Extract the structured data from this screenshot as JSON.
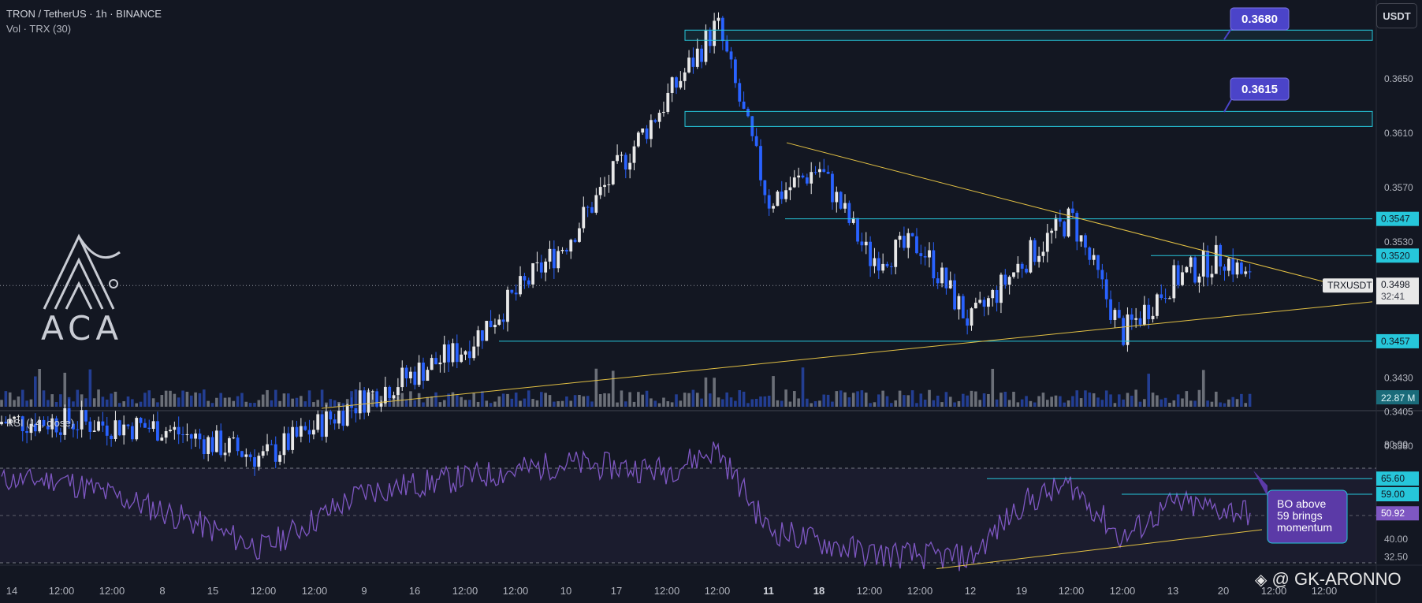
{
  "header": {
    "symbol_line": "TRON / TetherUS · 1h · BINANCE",
    "volume_line": "Vol · TRX (30)",
    "currency_button": "USDT"
  },
  "rsi_pane": {
    "label": "RSI (14, close)"
  },
  "logo": {
    "text": "ACA"
  },
  "watermark": {
    "text": "@ GK-ARONNO",
    "icon": "binance-diamond-icon"
  },
  "colors": {
    "background": "#131722",
    "bull_candle": "#e8e8e8",
    "bear_candle": "#2962ff",
    "level_line": "#26c6da",
    "trendline": "#e2c044",
    "rsi_line": "#7e57c2",
    "target_label_bg": "#4b44c9",
    "note_bg": "#5b3aa7"
  },
  "chart_data": [
    {
      "type": "candlestick",
      "pane": "price",
      "title": "TRON / TetherUS · 1h · BINANCE",
      "ylim": [
        0.336,
        0.37
      ],
      "y_ticks": [
        "0.3650",
        "0.3610",
        "0.3570",
        "0.3530",
        "0.3430",
        "0.3405",
        "0.3380"
      ],
      "x_tick_labels": [
        "12:00",
        "8",
        "12:00",
        "9",
        "12:00",
        "10",
        "12:00",
        "11",
        "12:00",
        "12",
        "12:00",
        "13",
        "12:00",
        "14",
        "12:00",
        "15",
        "12:00",
        "16",
        "12:00",
        "17",
        "12:00",
        "18",
        "12:00",
        "19",
        "12:00",
        "20",
        "12:00"
      ],
      "key_closes": [
        {
          "x": "8",
          "close": 0.3398
        },
        {
          "x": "9",
          "close": 0.3393
        },
        {
          "x": "10",
          "close": 0.3371
        },
        {
          "x": "11",
          "close": 0.3415
        },
        {
          "x": "12",
          "close": 0.3452
        },
        {
          "x": "13",
          "close": 0.353
        },
        {
          "x": "14",
          "close": 0.3635
        },
        {
          "x": "14 12:00",
          "close": 0.369
        },
        {
          "x": "15",
          "close": 0.356
        },
        {
          "x": "15 12:00",
          "close": 0.3585
        },
        {
          "x": "16",
          "close": 0.3518
        },
        {
          "x": "16 12:00",
          "close": 0.3528
        },
        {
          "x": "17",
          "close": 0.347
        },
        {
          "x": "17 12:00",
          "close": 0.3515
        },
        {
          "x": "18",
          "close": 0.3548
        },
        {
          "x": "18 12:00",
          "close": 0.3462
        },
        {
          "x": "19",
          "close": 0.3502
        },
        {
          "x": "19 12:00",
          "close": 0.352
        },
        {
          "x": "20",
          "close": 0.3498
        }
      ],
      "last_price": {
        "symbol": "TRXUSDT",
        "value": "0.3498",
        "countdown": "32:41"
      },
      "levels": [
        {
          "value": "0.3547",
          "label": "0.3547"
        },
        {
          "value": "0.3520",
          "label": "0.3520"
        },
        {
          "value": "0.3457",
          "label": "0.3457"
        }
      ],
      "targets": [
        {
          "label": "0.3680",
          "value": 0.368
        },
        {
          "label": "0.3615",
          "value": 0.3615
        }
      ],
      "volume": {
        "value_label": "22.87 M"
      }
    },
    {
      "type": "line",
      "pane": "rsi",
      "title": "RSI (14, close)",
      "ylim": [
        27,
        87
      ],
      "y_ticks": [
        "80.00",
        "40.00",
        "32.50"
      ],
      "levels": [
        "65.60",
        "59.00"
      ],
      "current": "50.92",
      "points": [
        {
          "x": "8",
          "y": 65
        },
        {
          "x": "9",
          "y": 52
        },
        {
          "x": "10",
          "y": 36
        },
        {
          "x": "11",
          "y": 60
        },
        {
          "x": "12",
          "y": 66
        },
        {
          "x": "13",
          "y": 72
        },
        {
          "x": "14",
          "y": 69
        },
        {
          "x": "14 12:00",
          "y": 78
        },
        {
          "x": "15",
          "y": 44
        },
        {
          "x": "16",
          "y": 34
        },
        {
          "x": "17",
          "y": 32
        },
        {
          "x": "17 12:00",
          "y": 55
        },
        {
          "x": "18",
          "y": 63
        },
        {
          "x": "18 12:00",
          "y": 40
        },
        {
          "x": "19",
          "y": 55
        },
        {
          "x": "20",
          "y": 51
        }
      ],
      "annotation": "BO above\n59 brings\nmomentum"
    }
  ]
}
